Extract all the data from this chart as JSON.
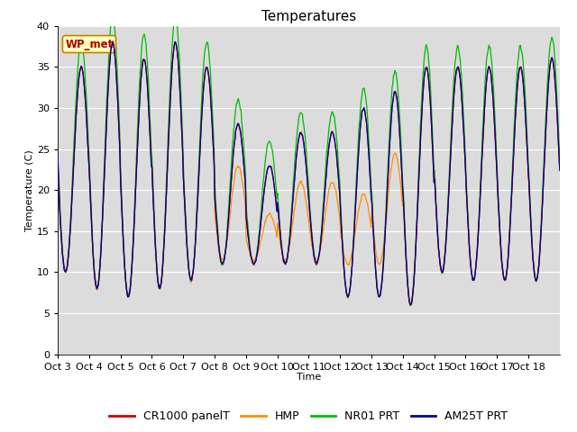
{
  "title": "Temperatures",
  "xlabel": "Time",
  "ylabel": "Temperature (C)",
  "ylim": [
    0,
    40
  ],
  "yticks": [
    0,
    5,
    10,
    15,
    20,
    25,
    30,
    35,
    40
  ],
  "x_labels": [
    "Oct 3",
    "Oct 4",
    "Oct 5",
    "Oct 6",
    "Oct 7",
    "Oct 8",
    "Oct 9",
    "Oct 10",
    "Oct 11",
    "Oct 12",
    "Oct 13",
    "Oct 14",
    "Oct 15",
    "Oct 16",
    "Oct 17",
    "Oct 18"
  ],
  "background_color": "#dcdcdc",
  "figure_background": "#ffffff",
  "legend_labels": [
    "CR1000 panelT",
    "HMP",
    "NR01 PRT",
    "AM25T PRT"
  ],
  "legend_colors": [
    "#cc0000",
    "#ff8c00",
    "#00bb00",
    "#000099"
  ],
  "wp_met_label": "WP_met",
  "wp_met_color": "#aa0000",
  "wp_met_bg": "#ffffbb",
  "title_fontsize": 11,
  "axis_fontsize": 8,
  "tick_fontsize": 8,
  "legend_fontsize": 9
}
